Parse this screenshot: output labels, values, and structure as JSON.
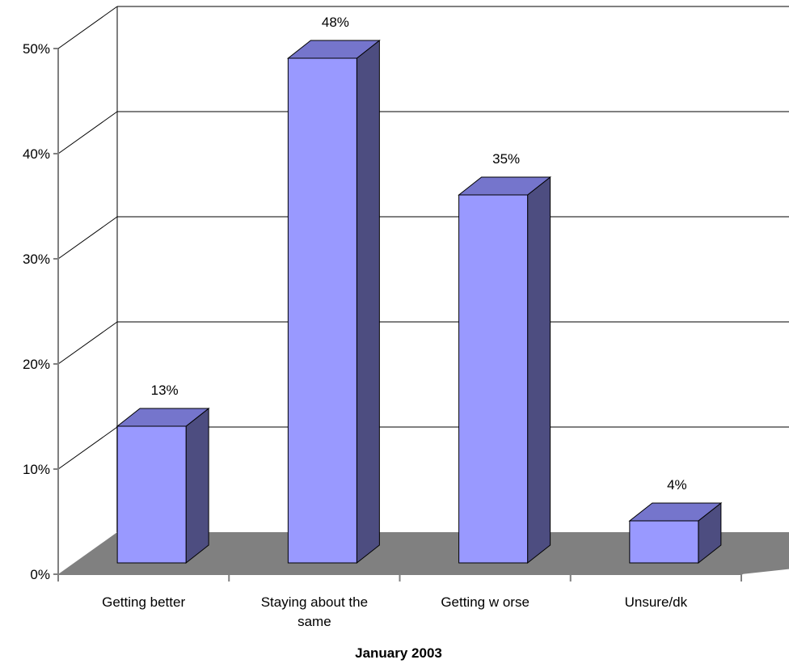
{
  "chart_data": {
    "type": "bar",
    "style": "3d-column",
    "categories": [
      "Getting better",
      "Staying about the same",
      "Getting w orse",
      "Unsure/dk"
    ],
    "category_lines": [
      [
        "Getting better"
      ],
      [
        "Staying about the",
        "same"
      ],
      [
        "Getting w orse"
      ],
      [
        "Unsure/dk"
      ]
    ],
    "values": [
      13,
      48,
      35,
      4
    ],
    "value_labels": [
      "13%",
      "48%",
      "35%",
      "4%"
    ],
    "xlabel": "January 2003",
    "ylabel": "",
    "ylim": [
      0,
      50
    ],
    "yticks": [
      0,
      10,
      20,
      30,
      40,
      50
    ],
    "ytick_labels": [
      "0%",
      "10%",
      "20%",
      "30%",
      "40%",
      "50%"
    ],
    "grid": true,
    "legend": "none",
    "colors": {
      "bar_front": "#9999FF",
      "bar_top": "#7575CC",
      "bar_side": "#4D4D80",
      "floor": "#808080",
      "gridline": "#000000",
      "axis": "#808080"
    }
  }
}
